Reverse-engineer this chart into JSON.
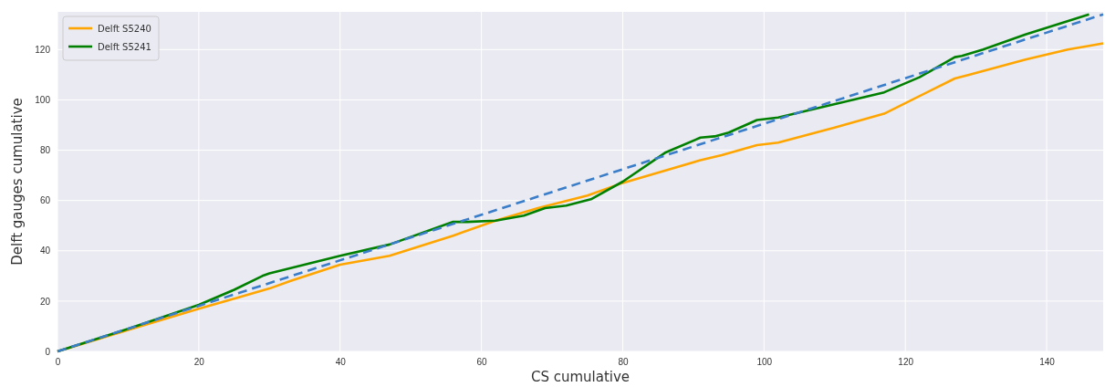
{
  "chart_data": {
    "type": "line",
    "xlabel": "CS cumulative",
    "ylabel": "Delft gauges cumulative",
    "xlim": [
      0,
      148
    ],
    "ylim": [
      0,
      135
    ],
    "xticks": [
      0,
      20,
      40,
      60,
      80,
      100,
      120,
      140
    ],
    "yticks": [
      0,
      20,
      40,
      60,
      80,
      100,
      120
    ],
    "grid": true,
    "legend": "top left",
    "series": [
      {
        "name": "Delft S5240",
        "color": "#ffa500",
        "x": [
          0,
          10,
          20,
          25,
          30,
          33,
          40,
          47,
          56,
          62,
          68,
          75,
          80,
          91,
          94,
          99,
          102,
          110,
          117,
          127,
          129,
          137,
          143,
          146,
          148
        ],
        "values": [
          0,
          8.5,
          17,
          21,
          25,
          28,
          34.5,
          38,
          46,
          52,
          57,
          62,
          67,
          76,
          78,
          82,
          83,
          89,
          94.5,
          108.5,
          110,
          116,
          120,
          121.5,
          122.5
        ]
      },
      {
        "name": "Delft S5241",
        "color": "#008000",
        "x": [
          0,
          10,
          20,
          25,
          29,
          30,
          40,
          47,
          56,
          58,
          62,
          66,
          69,
          72,
          75.5,
          80,
          86,
          91,
          93,
          95,
          99,
          102,
          105,
          117,
          122,
          127,
          128,
          131,
          137,
          146
        ],
        "values": [
          0,
          9,
          18.5,
          24.5,
          30,
          31,
          38,
          42.5,
          51.5,
          51.5,
          52,
          54,
          57,
          58,
          60.5,
          67.5,
          79,
          85,
          85.5,
          87,
          92,
          93,
          95,
          103,
          109,
          117,
          117.5,
          120,
          126,
          134
        ]
      },
      {
        "color": "#3a7dc9",
        "line_style": "dashed",
        "x": [
          0,
          148
        ],
        "values": [
          0,
          134
        ]
      }
    ]
  }
}
